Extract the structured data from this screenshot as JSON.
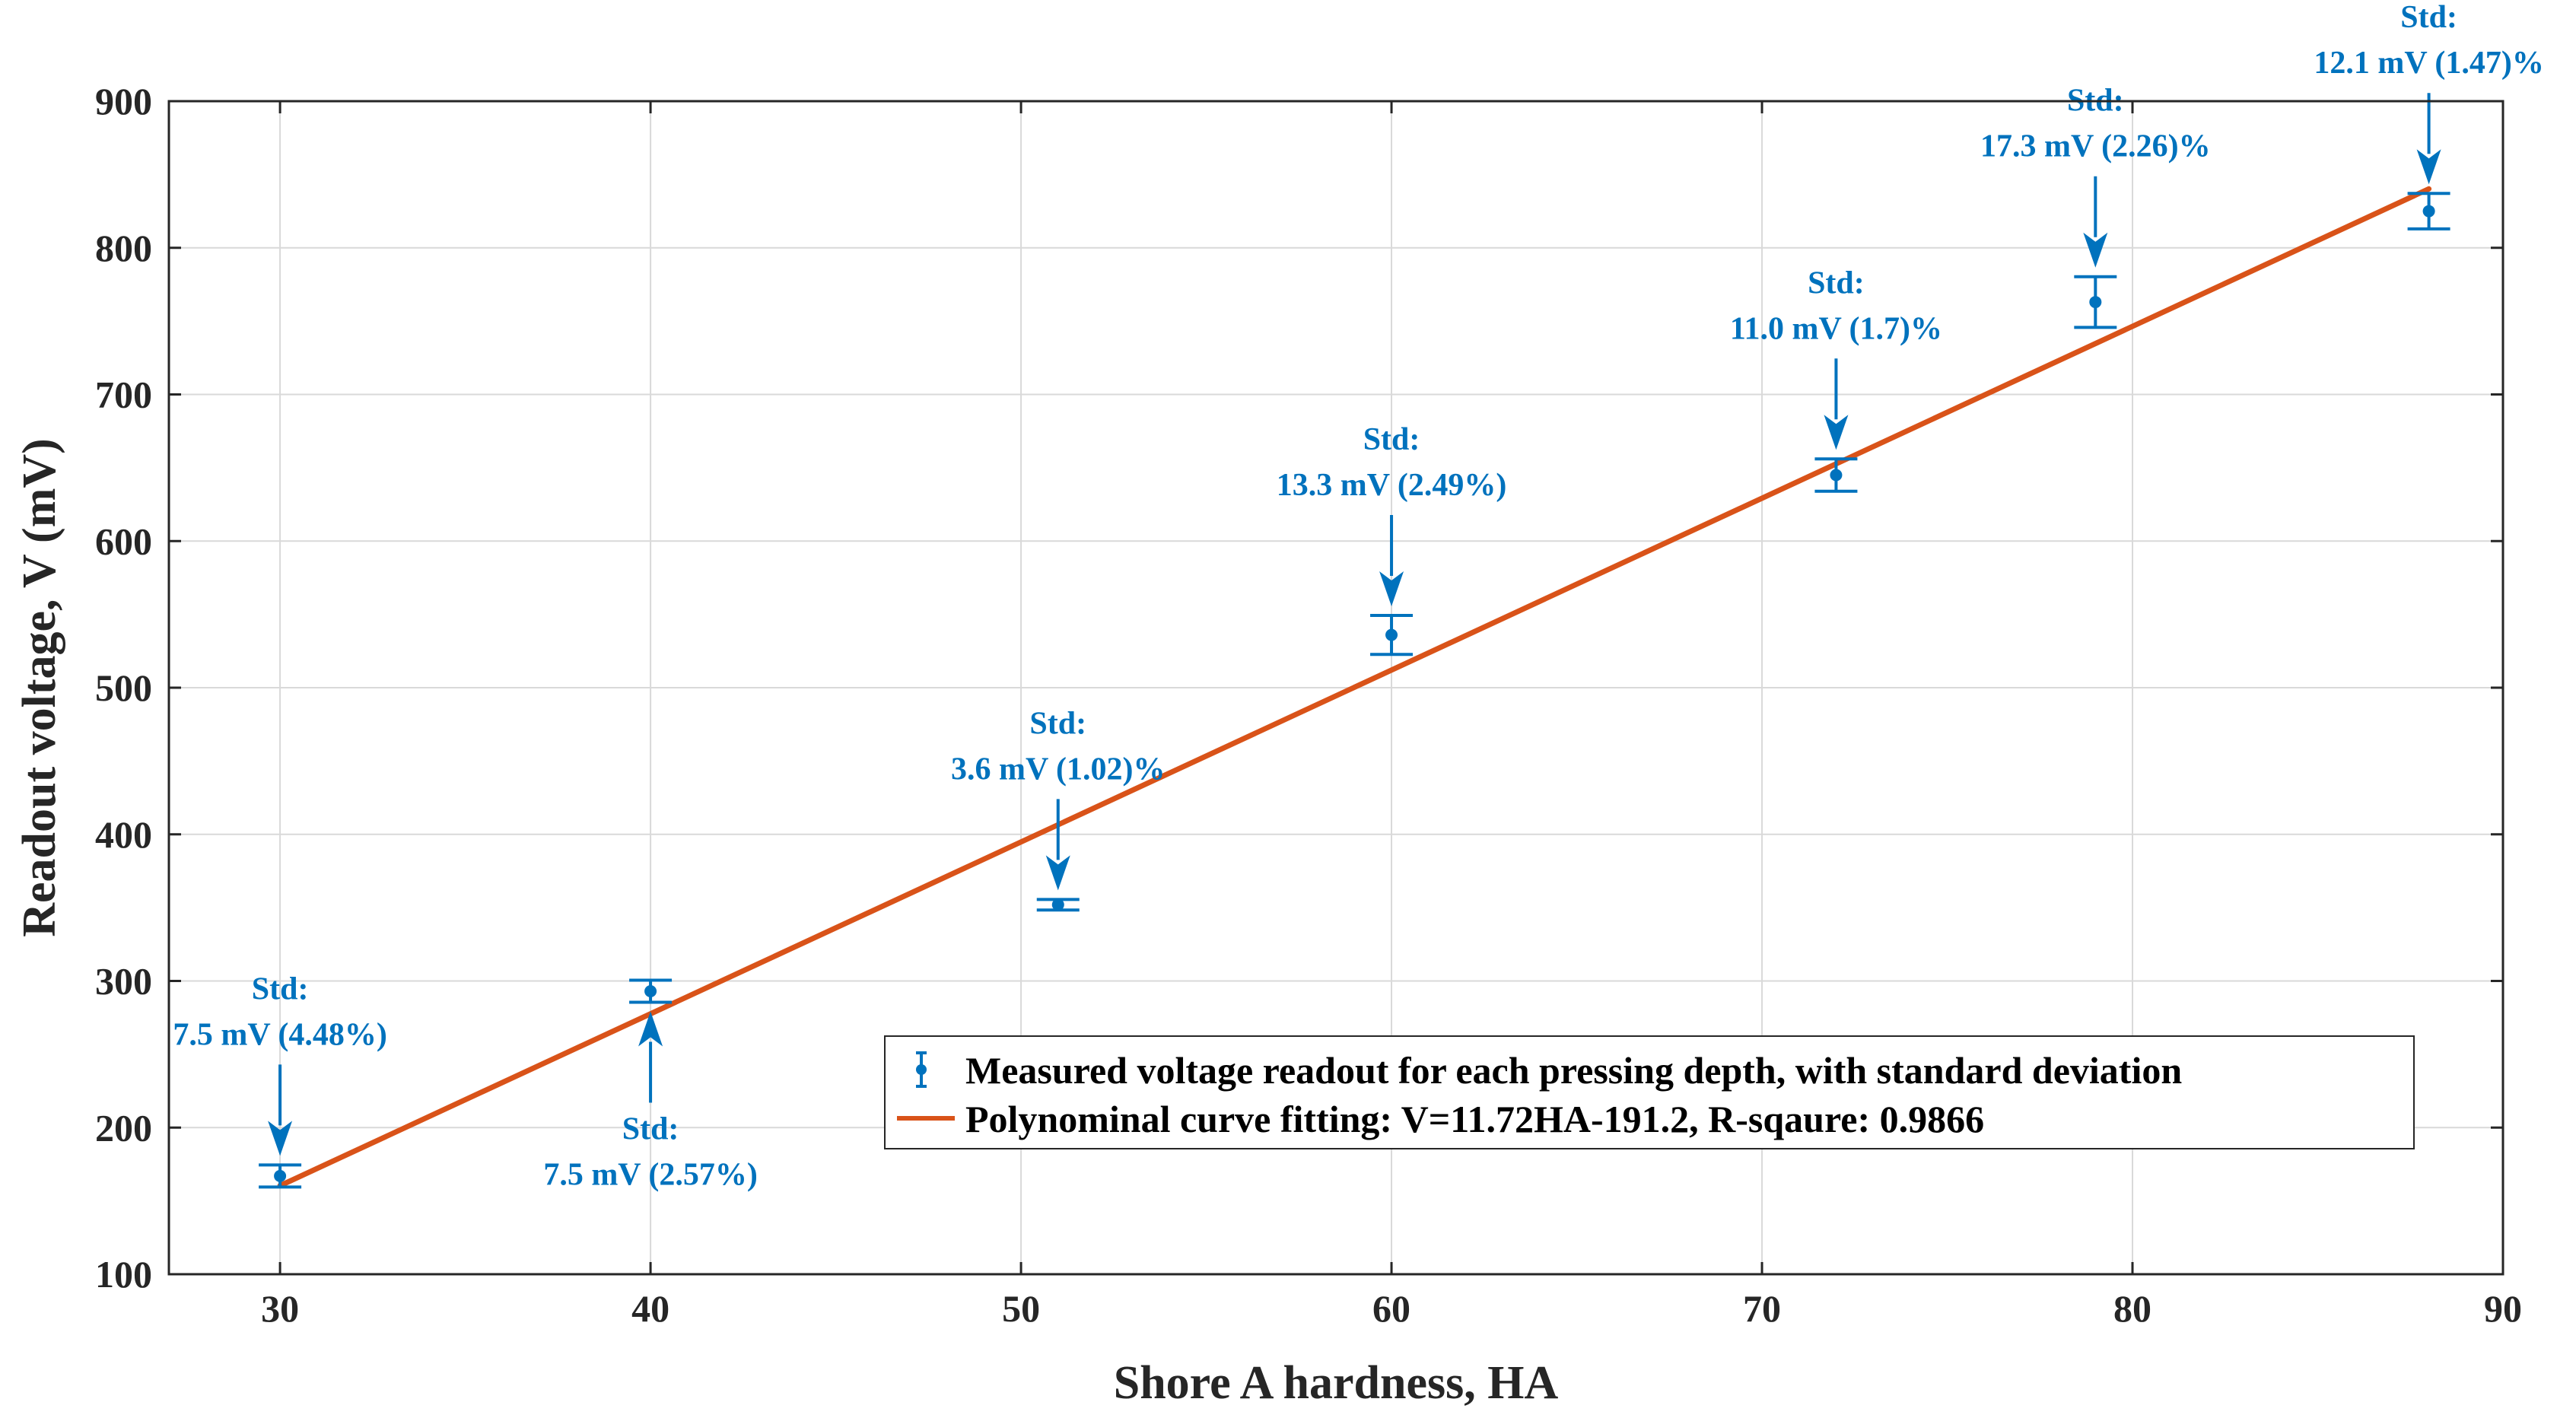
{
  "chart_data": {
    "type": "scatter",
    "title": "",
    "xlabel": "Shore A hardness, HA",
    "ylabel": "Readout voltage, V (mV)",
    "xlim": [
      27,
      90
    ],
    "ylim": [
      100,
      900
    ],
    "xticks": [
      30,
      40,
      50,
      60,
      70,
      80,
      90
    ],
    "yticks": [
      100,
      200,
      300,
      400,
      500,
      600,
      700,
      800,
      900
    ],
    "grid": true,
    "legend_position": "bottom-right",
    "colors": {
      "measured": "#0072BD",
      "fit": "#D95319",
      "axis": "#262626"
    },
    "series": [
      {
        "name": "Measured voltage readout for each pressing depth, with standard deviation",
        "kind": "errorbar",
        "x": [
          30,
          40,
          51,
          60,
          72,
          79,
          88
        ],
        "y": [
          167,
          293,
          352,
          536,
          645,
          763,
          825
        ],
        "err": [
          7.5,
          7.5,
          3.6,
          13.3,
          11.0,
          17.3,
          12.1
        ]
      },
      {
        "name": "Polynominal curve fitting: V=11.72HA-191.2, R-sqaure: 0.9866",
        "kind": "line",
        "x": [
          30,
          88
        ],
        "y": [
          160.4,
          840.2
        ]
      }
    ],
    "annotations": [
      {
        "line1": "Std:",
        "line2": "7.5 mV (4.48%)",
        "x": 30,
        "y": 167,
        "dir": "down"
      },
      {
        "line1": "Std:",
        "line2": "7.5 mV (2.57%)",
        "x": 40,
        "y": 293,
        "dir": "up"
      },
      {
        "line1": "Std:",
        "line2": "3.6 mV (1.02)%",
        "x": 51,
        "y": 352,
        "dir": "down"
      },
      {
        "line1": "Std:",
        "line2": "13.3 mV (2.49%)",
        "x": 60,
        "y": 536,
        "dir": "down"
      },
      {
        "line1": "Std:",
        "line2": "11.0 mV (1.7)%",
        "x": 72,
        "y": 645,
        "dir": "down"
      },
      {
        "line1": "Std:",
        "line2": "17.3 mV (2.26)%",
        "x": 79,
        "y": 763,
        "dir": "down"
      },
      {
        "line1": "Std:",
        "line2": "12.1 mV (1.47)%",
        "x": 88,
        "y": 825,
        "dir": "down"
      }
    ]
  }
}
